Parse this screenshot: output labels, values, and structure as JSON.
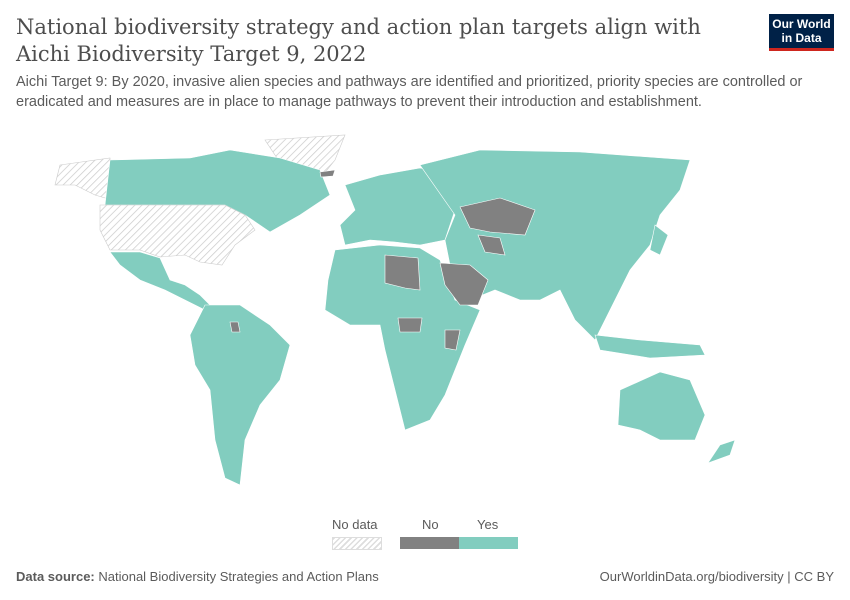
{
  "title": "National biodiversity strategy and action plan targets align with Aichi Biodiversity Target 9, 2022",
  "subtitle": "Aichi Target 9: By 2020, invasive alien species and pathways are identified and prioritized, priority species are controlled or eradicated and measures are in place to manage pathways to prevent their introduction and establishment.",
  "logo": "Our World in Data",
  "colors": {
    "yes": "#82cdbf",
    "no": "#818181",
    "no_data": "hatched"
  },
  "legend": {
    "no_data": "No data",
    "no": "No",
    "yes": "Yes"
  },
  "footer": {
    "source_label": "Data source:",
    "source": "National Biodiversity Strategies and Action Plans",
    "url": "OurWorldinData.org/biodiversity | CC BY"
  }
}
